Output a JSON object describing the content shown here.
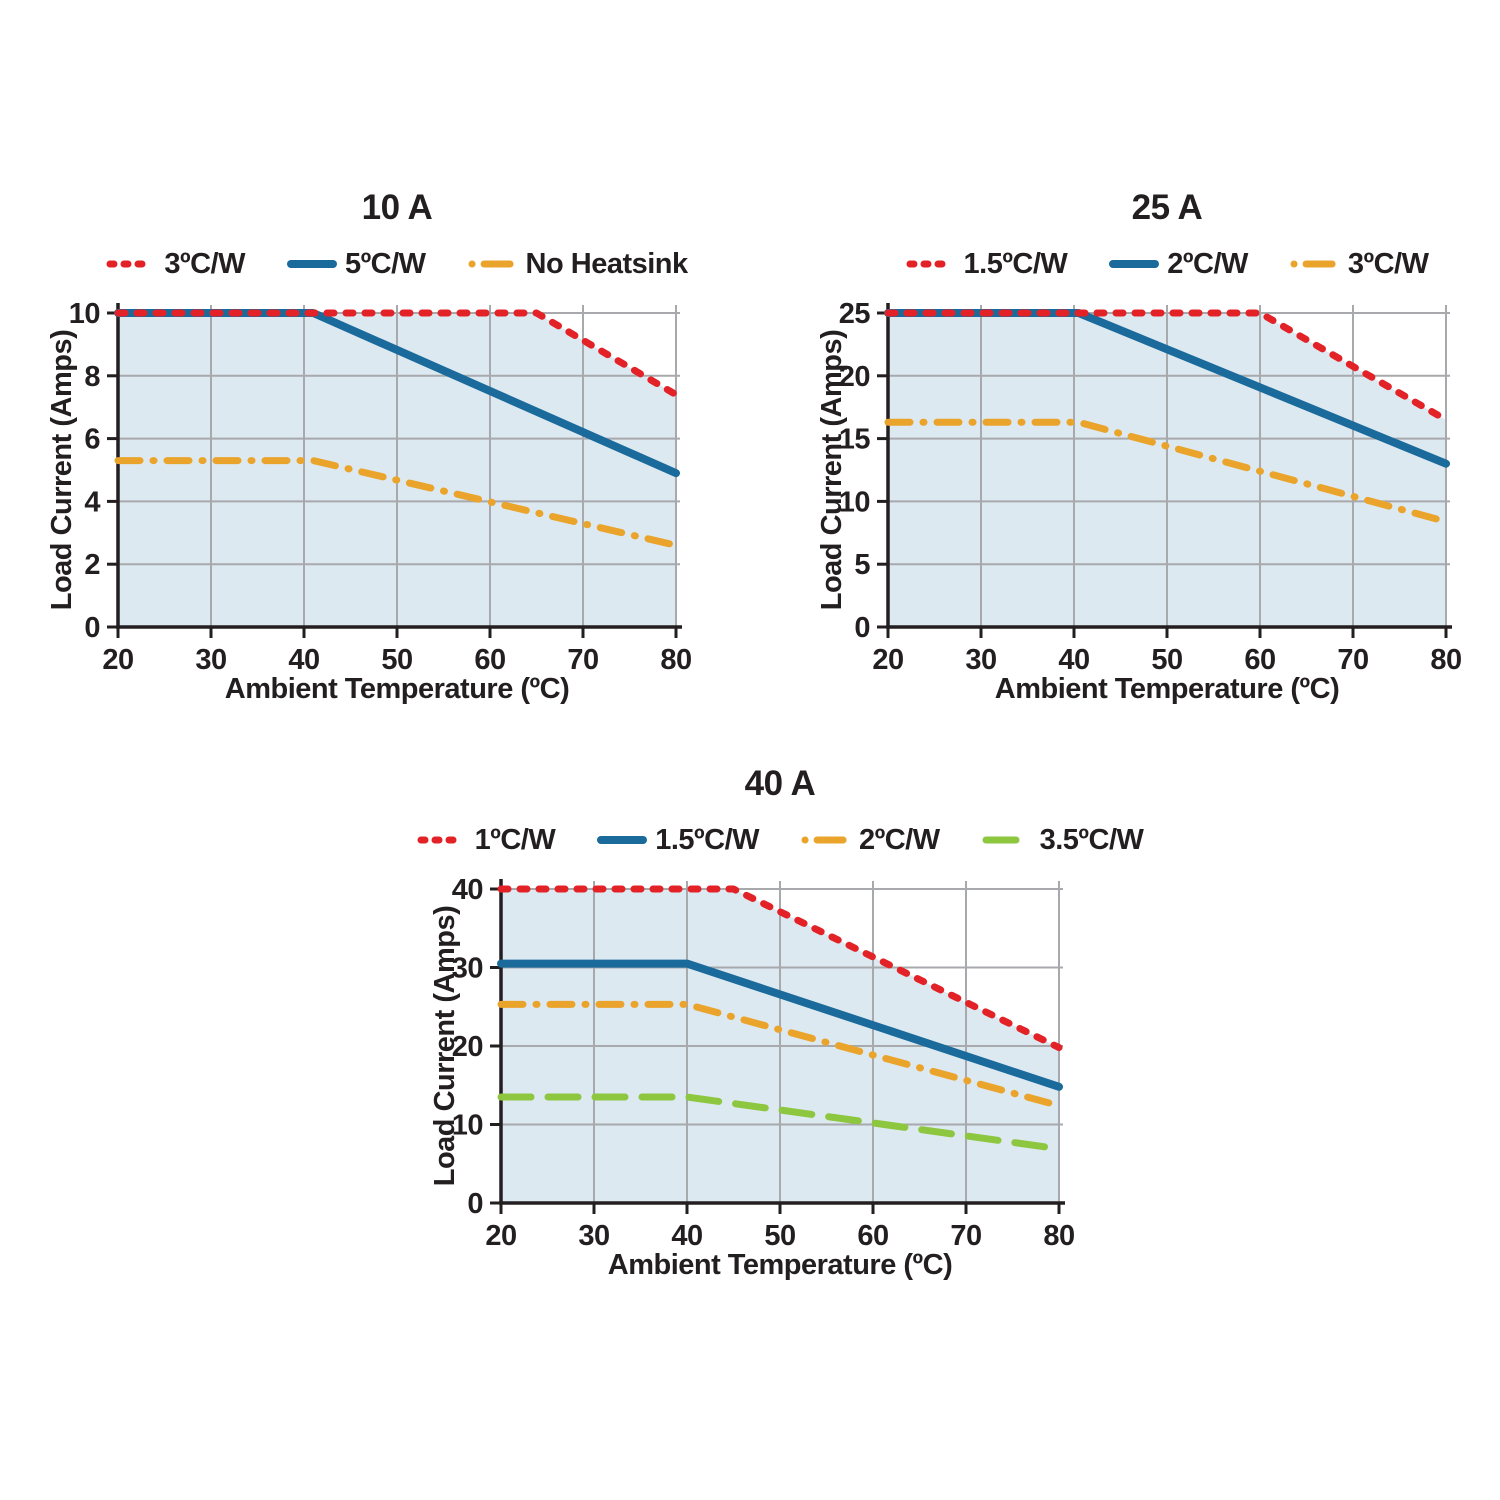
{
  "page": {
    "background": "#ffffff"
  },
  "colors": {
    "red": "#e32227",
    "blue": "#1b6a9c",
    "orange": "#eaa42b",
    "green": "#8dc63f",
    "area_fill": "#dde9f0",
    "grid": "#a7a9ac",
    "axis": "#231f20",
    "text": "#231f20"
  },
  "chart_data": [
    {
      "type": "line",
      "title": "10 A",
      "xlabel": "Ambient Temperature (ºC)",
      "ylabel": "Load Current (Amps)",
      "xlim": [
        20,
        80
      ],
      "ylim": [
        0,
        10
      ],
      "xticks": [
        20,
        30,
        40,
        50,
        60,
        70,
        80
      ],
      "yticks": [
        0,
        2,
        4,
        6,
        8,
        10
      ],
      "grid": true,
      "legend_position": "top",
      "area_fill_under": "3ºC/W",
      "series": [
        {
          "name": "3ºC/W",
          "color": "#e32227",
          "style": "dotted",
          "points": [
            [
              20,
              10
            ],
            [
              65,
              10
            ],
            [
              80,
              7.4
            ]
          ]
        },
        {
          "name": "5ºC/W",
          "color": "#1b6a9c",
          "style": "solid",
          "points": [
            [
              20,
              10
            ],
            [
              41,
              10
            ],
            [
              80,
              4.9
            ]
          ]
        },
        {
          "name": "No Heatsink",
          "color": "#eaa42b",
          "style": "dashdot",
          "points": [
            [
              20,
              5.3
            ],
            [
              41,
              5.3
            ],
            [
              80,
              2.6
            ]
          ]
        }
      ]
    },
    {
      "type": "line",
      "title": "25 A",
      "xlabel": "Ambient Temperature (ºC)",
      "ylabel": "Load Current (Amps)",
      "xlim": [
        20,
        80
      ],
      "ylim": [
        0,
        25
      ],
      "xticks": [
        20,
        30,
        40,
        50,
        60,
        70,
        80
      ],
      "yticks": [
        0,
        5,
        10,
        15,
        20,
        25
      ],
      "grid": true,
      "legend_position": "top",
      "area_fill_under": "1.5ºC/W",
      "series": [
        {
          "name": "1.5ºC/W",
          "color": "#e32227",
          "style": "dotted",
          "points": [
            [
              20,
              25
            ],
            [
              60,
              25
            ],
            [
              80,
              16.5
            ]
          ]
        },
        {
          "name": "2ºC/W",
          "color": "#1b6a9c",
          "style": "solid",
          "points": [
            [
              20,
              25
            ],
            [
              40.5,
              25
            ],
            [
              80,
              13
            ]
          ]
        },
        {
          "name": "3ºC/W",
          "color": "#eaa42b",
          "style": "dashdot",
          "points": [
            [
              20,
              16.3
            ],
            [
              40.5,
              16.3
            ],
            [
              80,
              8.4
            ]
          ]
        }
      ]
    },
    {
      "type": "line",
      "title": "40 A",
      "xlabel": "Ambient Temperature (ºC)",
      "ylabel": "Load Current (Amps)",
      "xlim": [
        20,
        80
      ],
      "ylim": [
        0,
        40
      ],
      "xticks": [
        20,
        30,
        40,
        50,
        60,
        70,
        80
      ],
      "yticks": [
        0,
        10,
        20,
        30,
        40
      ],
      "grid": true,
      "legend_position": "top",
      "area_fill_under": "1ºC/W",
      "series": [
        {
          "name": "1ºC/W",
          "color": "#e32227",
          "style": "dotted",
          "points": [
            [
              20,
              40
            ],
            [
              45,
              40
            ],
            [
              80,
              19.8
            ]
          ]
        },
        {
          "name": "1.5ºC/W",
          "color": "#1b6a9c",
          "style": "solid",
          "points": [
            [
              20,
              30.5
            ],
            [
              40,
              30.5
            ],
            [
              80,
              14.8
            ]
          ]
        },
        {
          "name": "2ºC/W",
          "color": "#eaa42b",
          "style": "dashdot",
          "points": [
            [
              20,
              25.3
            ],
            [
              40,
              25.3
            ],
            [
              80,
              12.4
            ]
          ]
        },
        {
          "name": "3.5ºC/W",
          "color": "#8dc63f",
          "style": "dashed",
          "points": [
            [
              20,
              13.5
            ],
            [
              40,
              13.5
            ],
            [
              80,
              6.9
            ]
          ]
        }
      ]
    }
  ]
}
